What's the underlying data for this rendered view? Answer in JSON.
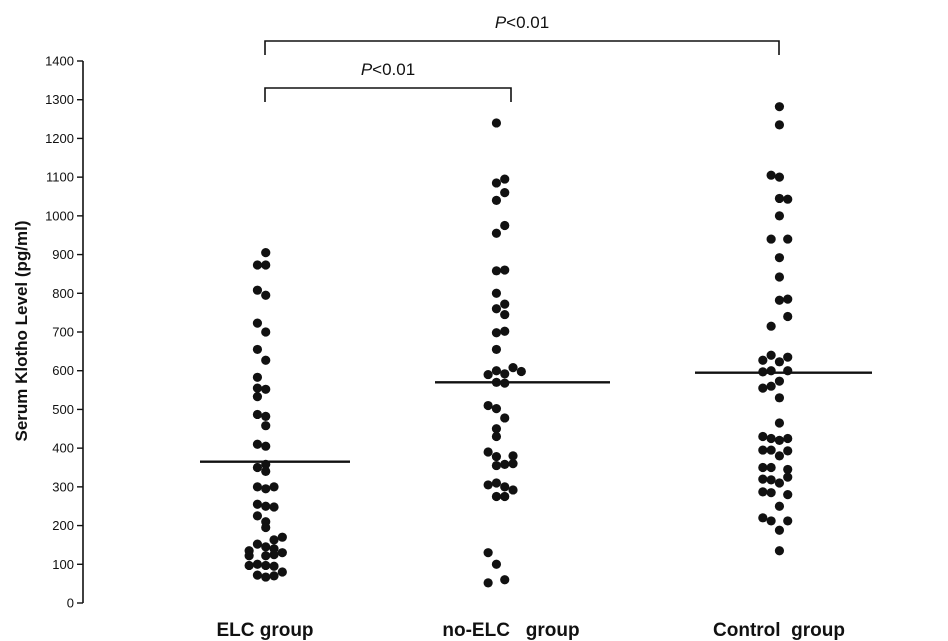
{
  "chart_data": {
    "type": "scatter",
    "title": "",
    "xlabel": "",
    "ylabel": "Serum Klotho Level (pg/ml)",
    "ylim": [
      0,
      1400
    ],
    "y_ticks": [
      "0",
      "100",
      "200",
      "300",
      "400",
      "500",
      "600",
      "700",
      "800",
      "900",
      "1000",
      "1100",
      "1200",
      "1300",
      "1400"
    ],
    "grid": false,
    "legend": "none",
    "categories": [
      "ELC group",
      "no-ELC   group",
      "Control  group"
    ],
    "series": [
      {
        "category": "ELC group",
        "mean": 365,
        "points": [
          [
            -0.23,
            905
          ],
          [
            -0.3,
            873
          ],
          [
            -0.23,
            873
          ],
          [
            -0.3,
            808
          ],
          [
            -0.23,
            795
          ],
          [
            -0.3,
            723
          ],
          [
            -0.23,
            700
          ],
          [
            -0.3,
            655
          ],
          [
            -0.23,
            627
          ],
          [
            -0.3,
            583
          ],
          [
            -0.3,
            555
          ],
          [
            -0.23,
            552
          ],
          [
            -0.3,
            533
          ],
          [
            -0.3,
            487
          ],
          [
            -0.23,
            482
          ],
          [
            -0.23,
            458
          ],
          [
            -0.3,
            410
          ],
          [
            -0.23,
            405
          ],
          [
            -0.23,
            358
          ],
          [
            -0.3,
            350
          ],
          [
            -0.23,
            340
          ],
          [
            -0.3,
            300
          ],
          [
            -0.23,
            295
          ],
          [
            -0.16,
            300
          ],
          [
            -0.3,
            255
          ],
          [
            -0.23,
            250
          ],
          [
            -0.16,
            248
          ],
          [
            -0.3,
            225
          ],
          [
            -0.23,
            210
          ],
          [
            -0.23,
            195
          ],
          [
            -0.09,
            170
          ],
          [
            -0.16,
            163
          ],
          [
            -0.3,
            152
          ],
          [
            -0.23,
            145
          ],
          [
            -0.16,
            140
          ],
          [
            -0.37,
            135
          ],
          [
            -0.37,
            122
          ],
          [
            -0.23,
            122
          ],
          [
            -0.16,
            125
          ],
          [
            -0.09,
            130
          ],
          [
            -0.37,
            97
          ],
          [
            -0.3,
            100
          ],
          [
            -0.23,
            97
          ],
          [
            -0.16,
            95
          ],
          [
            -0.3,
            72
          ],
          [
            -0.23,
            67
          ],
          [
            -0.16,
            70
          ],
          [
            -0.09,
            80
          ]
        ]
      },
      {
        "category": "no-ELC   group",
        "mean": 570,
        "points": [
          [
            -0.3,
            1240
          ],
          [
            -0.23,
            1095
          ],
          [
            -0.3,
            1085
          ],
          [
            -0.23,
            1060
          ],
          [
            -0.3,
            1040
          ],
          [
            -0.23,
            975
          ],
          [
            -0.3,
            955
          ],
          [
            -0.23,
            860
          ],
          [
            -0.3,
            858
          ],
          [
            -0.3,
            800
          ],
          [
            -0.23,
            772
          ],
          [
            -0.3,
            760
          ],
          [
            -0.23,
            745
          ],
          [
            -0.23,
            702
          ],
          [
            -0.3,
            698
          ],
          [
            -0.3,
            655
          ],
          [
            -0.16,
            608
          ],
          [
            -0.3,
            600
          ],
          [
            -0.37,
            590
          ],
          [
            -0.23,
            592
          ],
          [
            -0.09,
            598
          ],
          [
            -0.3,
            570
          ],
          [
            -0.23,
            568
          ],
          [
            -0.37,
            510
          ],
          [
            -0.3,
            502
          ],
          [
            -0.23,
            478
          ],
          [
            -0.3,
            450
          ],
          [
            -0.3,
            430
          ],
          [
            -0.37,
            390
          ],
          [
            -0.3,
            378
          ],
          [
            -0.16,
            380
          ],
          [
            -0.23,
            358
          ],
          [
            -0.3,
            355
          ],
          [
            -0.16,
            360
          ],
          [
            -0.37,
            305
          ],
          [
            -0.3,
            310
          ],
          [
            -0.23,
            300
          ],
          [
            -0.16,
            292
          ],
          [
            -0.3,
            275
          ],
          [
            -0.23,
            275
          ],
          [
            -0.37,
            130
          ],
          [
            -0.3,
            100
          ],
          [
            -0.37,
            52
          ],
          [
            -0.23,
            60
          ]
        ]
      },
      {
        "category": "Control  group",
        "mean": 595,
        "points": [
          [
            -0.3,
            1282
          ],
          [
            -0.3,
            1235
          ],
          [
            -0.37,
            1105
          ],
          [
            -0.3,
            1100
          ],
          [
            -0.3,
            1045
          ],
          [
            -0.23,
            1043
          ],
          [
            -0.3,
            1000
          ],
          [
            -0.37,
            940
          ],
          [
            -0.23,
            940
          ],
          [
            -0.3,
            892
          ],
          [
            -0.3,
            842
          ],
          [
            -0.23,
            785
          ],
          [
            -0.3,
            782
          ],
          [
            -0.23,
            740
          ],
          [
            -0.37,
            715
          ],
          [
            -0.23,
            635
          ],
          [
            -0.37,
            640
          ],
          [
            -0.44,
            627
          ],
          [
            -0.3,
            623
          ],
          [
            -0.23,
            600
          ],
          [
            -0.37,
            600
          ],
          [
            -0.44,
            597
          ],
          [
            -0.3,
            573
          ],
          [
            -0.37,
            560
          ],
          [
            -0.44,
            555
          ],
          [
            -0.3,
            530
          ],
          [
            -0.3,
            465
          ],
          [
            -0.44,
            430
          ],
          [
            -0.37,
            425
          ],
          [
            -0.23,
            425
          ],
          [
            -0.3,
            420
          ],
          [
            -0.44,
            395
          ],
          [
            -0.37,
            395
          ],
          [
            -0.23,
            393
          ],
          [
            -0.3,
            380
          ],
          [
            -0.44,
            350
          ],
          [
            -0.37,
            350
          ],
          [
            -0.23,
            345
          ],
          [
            -0.44,
            320
          ],
          [
            -0.37,
            318
          ],
          [
            -0.23,
            325
          ],
          [
            -0.3,
            310
          ],
          [
            -0.44,
            287
          ],
          [
            -0.37,
            285
          ],
          [
            -0.23,
            280
          ],
          [
            -0.3,
            250
          ],
          [
            -0.44,
            220
          ],
          [
            -0.37,
            212
          ],
          [
            -0.23,
            212
          ],
          [
            -0.3,
            188
          ],
          [
            -0.3,
            135
          ]
        ]
      }
    ],
    "annotations": [
      {
        "label_italic": "P",
        "label_rest": "<0.01",
        "from": "ELC group",
        "to": "Control  group",
        "level": 2
      },
      {
        "label_italic": "P",
        "label_rest": "<0.01",
        "from": "ELC group",
        "to": "no-ELC   group",
        "level": 1
      }
    ]
  }
}
